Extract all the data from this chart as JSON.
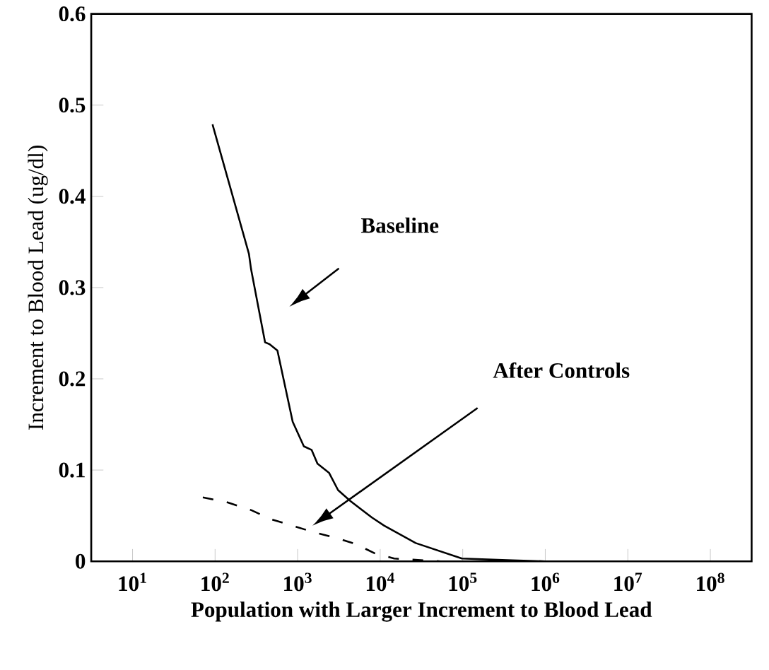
{
  "chart_data": {
    "type": "line",
    "xlabel": "Population with Larger Increment to Blood Lead",
    "ylabel": "Increment to Blood Lead (ug/dl)",
    "log": "x",
    "xlim": [
      3.16,
      316000000
    ],
    "ylim": [
      0,
      0.6
    ],
    "xticks": [
      {
        "value": 10,
        "label": "10$^{1}$"
      },
      {
        "value": 100,
        "label": "10$^{2}$"
      },
      {
        "value": 1000,
        "label": "10$^{3}$"
      },
      {
        "value": 10000,
        "label": "10$^{4}$"
      },
      {
        "value": 100000,
        "label": "10$^{5}$"
      },
      {
        "value": 1000000,
        "label": "10$^{6}$"
      },
      {
        "value": 10000000,
        "label": "10$^{7}$"
      },
      {
        "value": 100000000,
        "label": "10$^{8}$"
      }
    ],
    "yticks": [
      0,
      0.1,
      0.2,
      0.3,
      0.4,
      0.5,
      0.6
    ],
    "grid": false,
    "marker": "none",
    "series": [
      {
        "color": "#000000",
        "line_style": "solid",
        "x": [
          93,
          257,
          273,
          403,
          457,
          569,
          871,
          1189,
          1479,
          1738,
          2399,
          3090,
          4365,
          7943,
          11220,
          26915,
          97724,
          398107,
          1000000
        ],
        "values": [
          0.479,
          0.337,
          0.32,
          0.24,
          0.238,
          0.231,
          0.153,
          0.126,
          0.122,
          0.107,
          0.097,
          0.078,
          0.066,
          0.048,
          0.039,
          0.02,
          0.003,
          0.001,
          0
        ]
      },
      {
        "color": "#000000",
        "line_style": "dashed",
        "x": [
          71,
          136,
          275,
          479,
          871,
          1549,
          2818,
          5012,
          8710,
          14791,
          53703
        ],
        "values": [
          0.07,
          0.065,
          0.056,
          0.046,
          0.039,
          0.032,
          0.026,
          0.019,
          0.0085,
          0.003,
          0
        ]
      }
    ],
    "annotations": [
      "Baseline",
      "After Controls"
    ]
  }
}
